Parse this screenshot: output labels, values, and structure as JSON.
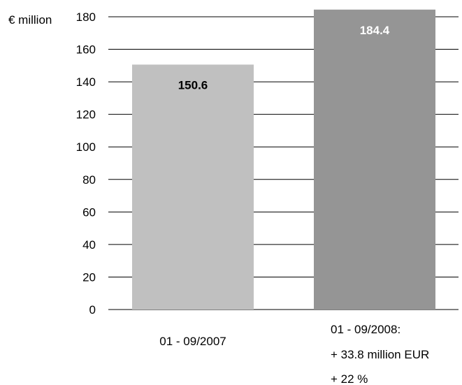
{
  "chart_data": {
    "type": "bar",
    "unit_label": "€ million",
    "categories": [
      "01 - 09/2007",
      "01 - 09/2008:"
    ],
    "category_annotations": [
      "",
      "+ 33.8 million EUR\n+ 22 %"
    ],
    "values": [
      150.6,
      184.4
    ],
    "data_labels": [
      "150.6",
      "184.4"
    ],
    "bar_colors": [
      "#c0c0c0",
      "#959595"
    ],
    "data_label_colors": [
      "#000000",
      "#ffffff"
    ],
    "ylim": [
      0,
      180
    ],
    "yticks": [
      0,
      20,
      40,
      60,
      80,
      100,
      120,
      140,
      160,
      180
    ],
    "grid": true,
    "legend": "none"
  }
}
